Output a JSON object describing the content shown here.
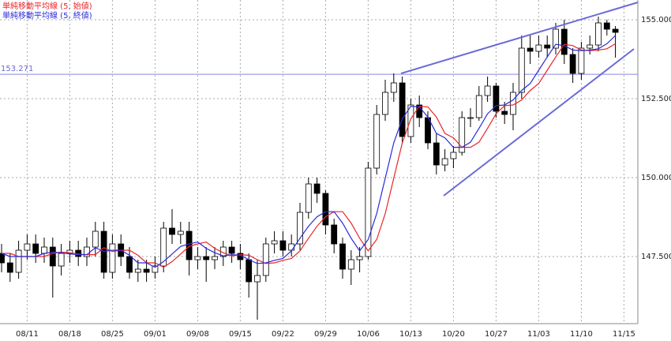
{
  "chart_data": {
    "type": "candlestick",
    "categories": [
      null,
      null,
      null,
      "08/11",
      null,
      null,
      null,
      null,
      "08/18",
      null,
      null,
      null,
      null,
      "08/25",
      null,
      null,
      null,
      null,
      "09/01",
      null,
      null,
      null,
      null,
      "09/08",
      null,
      null,
      null,
      null,
      "09/15",
      null,
      null,
      null,
      null,
      "09/22",
      null,
      null,
      null,
      null,
      "09/29",
      null,
      null,
      null,
      null,
      "10/06",
      null,
      null,
      null,
      null,
      "10/13",
      null,
      null,
      null,
      null,
      "10/20",
      null,
      null,
      null,
      null,
      "10/27",
      null,
      null,
      null,
      null,
      "11/03",
      null,
      null,
      null,
      null,
      "11/10",
      null,
      null,
      null,
      null,
      "11/15"
    ],
    "open": [
      147.6,
      147.3,
      147.0,
      147.7,
      147.9,
      147.6,
      147.8,
      147.2,
      147.6,
      147.7,
      147.5,
      147.8,
      148.3,
      147.0,
      147.9,
      147.5,
      147.0,
      147.1,
      147.0,
      147.2,
      148.4,
      148.2,
      148.3,
      147.4,
      147.5,
      147.4,
      147.5,
      147.8,
      147.6,
      147.4,
      146.7,
      146.9,
      147.9,
      148.0,
      147.7,
      147.9,
      148.9,
      149.8,
      149.5,
      148.5,
      147.9,
      147.1,
      147.4,
      147.5,
      150.3,
      152.0,
      152.7,
      153.0,
      151.3,
      152.3,
      151.9,
      151.1,
      150.4,
      150.6,
      150.8,
      151.9,
      151.9,
      152.6,
      152.9,
      152.1,
      152.0,
      152.7,
      154.1,
      154.0,
      154.2,
      154.1,
      154.7,
      153.9,
      153.3,
      154.1,
      154.2,
      154.9,
      154.7,
      null
    ],
    "high": [
      147.9,
      147.6,
      148.0,
      148.2,
      148.2,
      148.1,
      148.1,
      147.9,
      148.0,
      148.0,
      148.1,
      148.6,
      148.6,
      148.2,
      148.2,
      147.8,
      147.4,
      147.4,
      147.5,
      148.6,
      149.0,
      148.6,
      148.6,
      147.8,
      147.8,
      147.8,
      148.0,
      148.0,
      147.9,
      147.6,
      147.4,
      148.1,
      148.3,
      148.3,
      148.2,
      149.2,
      150.0,
      150.0,
      149.6,
      148.7,
      148.1,
      147.7,
      147.8,
      150.5,
      152.3,
      153.1,
      153.3,
      153.2,
      152.5,
      152.6,
      152.1,
      151.4,
      150.9,
      151.0,
      152.1,
      152.2,
      152.9,
      153.2,
      153.0,
      152.4,
      153.0,
      154.5,
      154.5,
      154.5,
      154.5,
      154.9,
      155.0,
      154.1,
      154.3,
      154.5,
      155.1,
      155.0,
      154.8,
      null
    ],
    "low": [
      147.0,
      146.7,
      146.8,
      147.4,
      147.3,
      147.3,
      146.2,
      146.9,
      147.3,
      147.2,
      147.2,
      147.5,
      146.8,
      146.8,
      147.2,
      146.8,
      146.7,
      146.7,
      146.8,
      147.0,
      147.9,
      147.9,
      146.9,
      147.1,
      146.7,
      147.1,
      147.2,
      147.3,
      147.1,
      146.2,
      145.5,
      146.7,
      147.6,
      147.5,
      147.5,
      147.7,
      148.7,
      149.2,
      148.2,
      147.6,
      146.8,
      146.6,
      147.0,
      147.4,
      150.1,
      151.8,
      152.4,
      151.1,
      151.1,
      151.6,
      150.9,
      150.1,
      150.2,
      150.3,
      150.7,
      151.6,
      151.8,
      152.4,
      151.9,
      151.7,
      151.5,
      152.5,
      153.6,
      153.8,
      153.8,
      153.9,
      153.6,
      153.0,
      153.1,
      153.9,
      154.0,
      154.5,
      153.8,
      null
    ],
    "close": [
      147.3,
      147.0,
      147.7,
      147.9,
      147.6,
      147.8,
      147.2,
      147.6,
      147.7,
      147.5,
      147.8,
      148.3,
      147.0,
      147.9,
      147.5,
      147.0,
      147.1,
      147.0,
      147.2,
      148.4,
      148.2,
      148.3,
      147.4,
      147.5,
      147.4,
      147.5,
      147.8,
      147.6,
      147.4,
      146.7,
      146.9,
      147.9,
      148.0,
      147.7,
      147.9,
      148.9,
      149.8,
      149.5,
      148.5,
      147.9,
      147.1,
      147.4,
      147.5,
      150.3,
      152.0,
      152.7,
      153.0,
      151.3,
      152.3,
      151.9,
      151.1,
      150.4,
      150.6,
      150.8,
      151.9,
      151.9,
      152.6,
      152.9,
      152.1,
      152.0,
      152.7,
      154.1,
      154.0,
      154.2,
      154.1,
      154.7,
      153.9,
      153.3,
      154.1,
      154.2,
      154.9,
      154.7,
      154.6,
      null
    ],
    "series": [
      {
        "name": "単純移動平均線 (5, 始値)",
        "color": "#e8262b",
        "values": [
          147.6,
          147.6,
          147.5,
          147.5,
          147.5,
          147.5,
          147.6,
          147.64,
          147.62,
          147.58,
          147.56,
          147.56,
          147.78,
          147.66,
          147.7,
          147.7,
          147.54,
          147.3,
          147.3,
          147.16,
          147.34,
          147.58,
          147.82,
          147.9,
          147.96,
          147.76,
          147.62,
          147.52,
          147.56,
          147.54,
          147.4,
          147.28,
          147.3,
          147.38,
          147.44,
          147.68,
          148.08,
          148.46,
          148.76,
          148.92,
          148.92,
          148.56,
          148.08,
          147.68,
          148.04,
          148.86,
          149.98,
          151.1,
          151.86,
          152.26,
          152.24,
          151.92,
          151.4,
          151.26,
          150.96,
          150.96,
          151.12,
          151.56,
          152.02,
          152.28,
          152.3,
          152.46,
          152.76,
          152.98,
          153.4,
          153.82,
          154.22,
          154.18,
          154.04,
          154.02,
          154.04,
          154.08,
          154.24,
          null
        ]
      },
      {
        "name": "単純移動平均線 (5, 終値)",
        "color": "#2b2bd9",
        "values": [
          147.6,
          147.5,
          147.5,
          147.5,
          147.5,
          147.6,
          147.64,
          147.62,
          147.58,
          147.56,
          147.56,
          147.78,
          147.66,
          147.7,
          147.7,
          147.54,
          147.3,
          147.3,
          147.16,
          147.34,
          147.58,
          147.82,
          147.9,
          147.96,
          147.76,
          147.62,
          147.52,
          147.56,
          147.54,
          147.4,
          147.28,
          147.3,
          147.38,
          147.44,
          147.68,
          148.08,
          148.46,
          148.76,
          148.92,
          148.92,
          148.56,
          148.08,
          147.68,
          148.04,
          148.86,
          149.98,
          151.1,
          151.86,
          152.26,
          152.24,
          151.92,
          151.4,
          151.26,
          150.96,
          150.96,
          151.12,
          151.56,
          152.02,
          152.28,
          152.3,
          152.46,
          152.76,
          152.98,
          153.4,
          153.82,
          154.22,
          154.18,
          154.04,
          154.02,
          154.04,
          154.08,
          154.24,
          154.5,
          null
        ]
      }
    ],
    "hline": 153.271,
    "ylim": [
      145.375,
      155.625
    ],
    "yticks": [
      {
        "value": 147.5,
        "label": "147.500"
      },
      {
        "value": 150,
        "label": "150.000"
      },
      {
        "value": 152.5,
        "label": "152.500"
      },
      {
        "value": 155,
        "label": "155.000"
      }
    ],
    "grid": true,
    "legend": "top-left"
  }
}
